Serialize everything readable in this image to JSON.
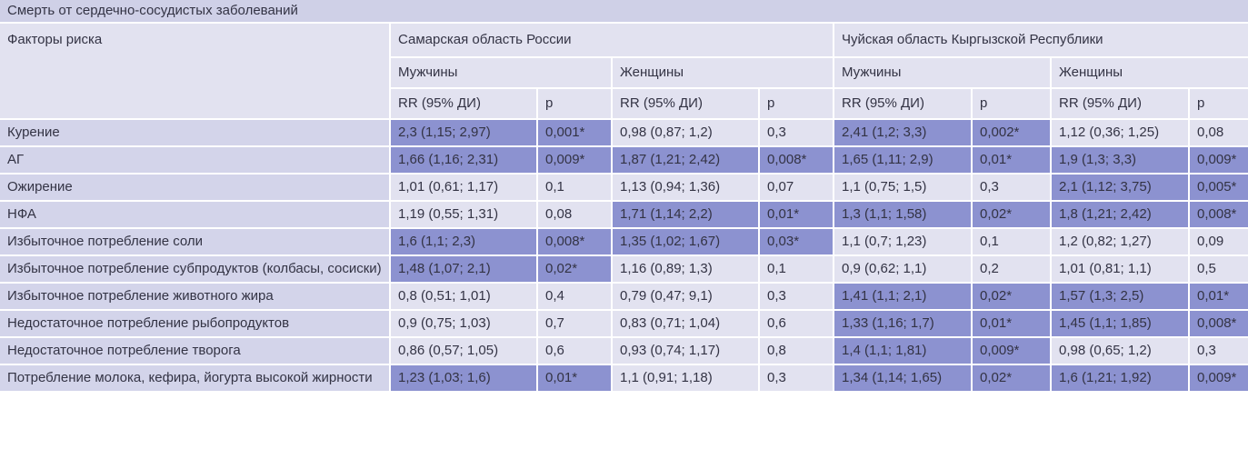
{
  "title": "Смерть от сердечно-сосудистых заболеваний",
  "header": {
    "risk_factors": "Факторы риска",
    "region1": "Самарская область России",
    "region2": "Чуйская область Кыргызской Республики",
    "men": "Мужчины",
    "women": "Женщины",
    "rr": "RR (95% ДИ)",
    "p": "р"
  },
  "rows": [
    {
      "factor": "Курение",
      "cells": [
        "2,3 (1,15; 2,97)",
        "0,001*",
        "0,98 (0,87; 1,2)",
        "0,3",
        "2,41 (1,2; 3,3)",
        "0,002*",
        "1,12 (0,36; 1,25)",
        "0,08"
      ]
    },
    {
      "factor": "АГ",
      "cells": [
        "1,66 (1,16; 2,31)",
        "0,009*",
        "1,87 (1,21; 2,42)",
        "0,008*",
        "1,65 (1,11; 2,9)",
        "0,01*",
        "1,9 (1,3; 3,3)",
        "0,009*"
      ]
    },
    {
      "factor": "Ожирение",
      "cells": [
        "1,01 (0,61; 1,17)",
        "0,1",
        "1,13 (0,94; 1,36)",
        "0,07",
        "1,1 (0,75; 1,5)",
        "0,3",
        "2,1 (1,12; 3,75)",
        "0,005*"
      ]
    },
    {
      "factor": "НФА",
      "cells": [
        "1,19 (0,55; 1,31)",
        "0,08",
        "1,71 (1,14; 2,2)",
        "0,01*",
        "1,3 (1,1; 1,58)",
        "0,02*",
        "1,8 (1,21; 2,42)",
        "0,008*"
      ]
    },
    {
      "factor": "Избыточное потребление соли",
      "cells": [
        "1,6 (1,1; 2,3)",
        "0,008*",
        "1,35 (1,02; 1,67)",
        "0,03*",
        "1,1 (0,7; 1,23)",
        "0,1",
        "1,2 (0,82; 1,27)",
        "0,09"
      ]
    },
    {
      "factor": "Избыточное потребление субпродуктов (колбасы, сосиски)",
      "cells": [
        "1,48 (1,07; 2,1)",
        "0,02*",
        "1,16 (0,89; 1,3)",
        "0,1",
        "0,9 (0,62; 1,1)",
        "0,2",
        "1,01 (0,81; 1,1)",
        "0,5"
      ]
    },
    {
      "factor": "Избыточное потребление животного жира",
      "cells": [
        "0,8 (0,51; 1,01)",
        "0,4",
        "0,79 (0,47; 9,1)",
        "0,3",
        "1,41 (1,1; 2,1)",
        "0,02*",
        "1,57 (1,3; 2,5)",
        "0,01*"
      ]
    },
    {
      "factor": "Недостаточное потребление рыбопродуктов",
      "cells": [
        "0,9 (0,75; 1,03)",
        "0,7",
        "0,83 (0,71; 1,04)",
        "0,6",
        "1,33 (1,16; 1,7)",
        "0,01*",
        "1,45 (1,1; 1,85)",
        "0,008*"
      ]
    },
    {
      "factor": "Недостаточное потребление творога",
      "cells": [
        "0,86 (0,57; 1,05)",
        "0,6",
        "0,93 (0,74; 1,17)",
        "0,8",
        "1,4 (1,1; 1,81)",
        "0,009*",
        "0,98 (0,65; 1,2)",
        "0,3"
      ]
    },
    {
      "factor": "Потребление молока, кефира, йогурта высокой жирности",
      "cells": [
        "1,23 (1,03; 1,6)",
        "0,01*",
        "1,1 (0,91; 1,18)",
        "0,3",
        "1,34 (1,14; 1,65)",
        "0,02*",
        "1,6 (1,21; 1,92)",
        "0,009*"
      ]
    }
  ],
  "colors": {
    "light": "#e2e2f0",
    "title": "#cfd0e7",
    "highlight": "#8c92d0",
    "rowhead": "#d3d4ea"
  }
}
